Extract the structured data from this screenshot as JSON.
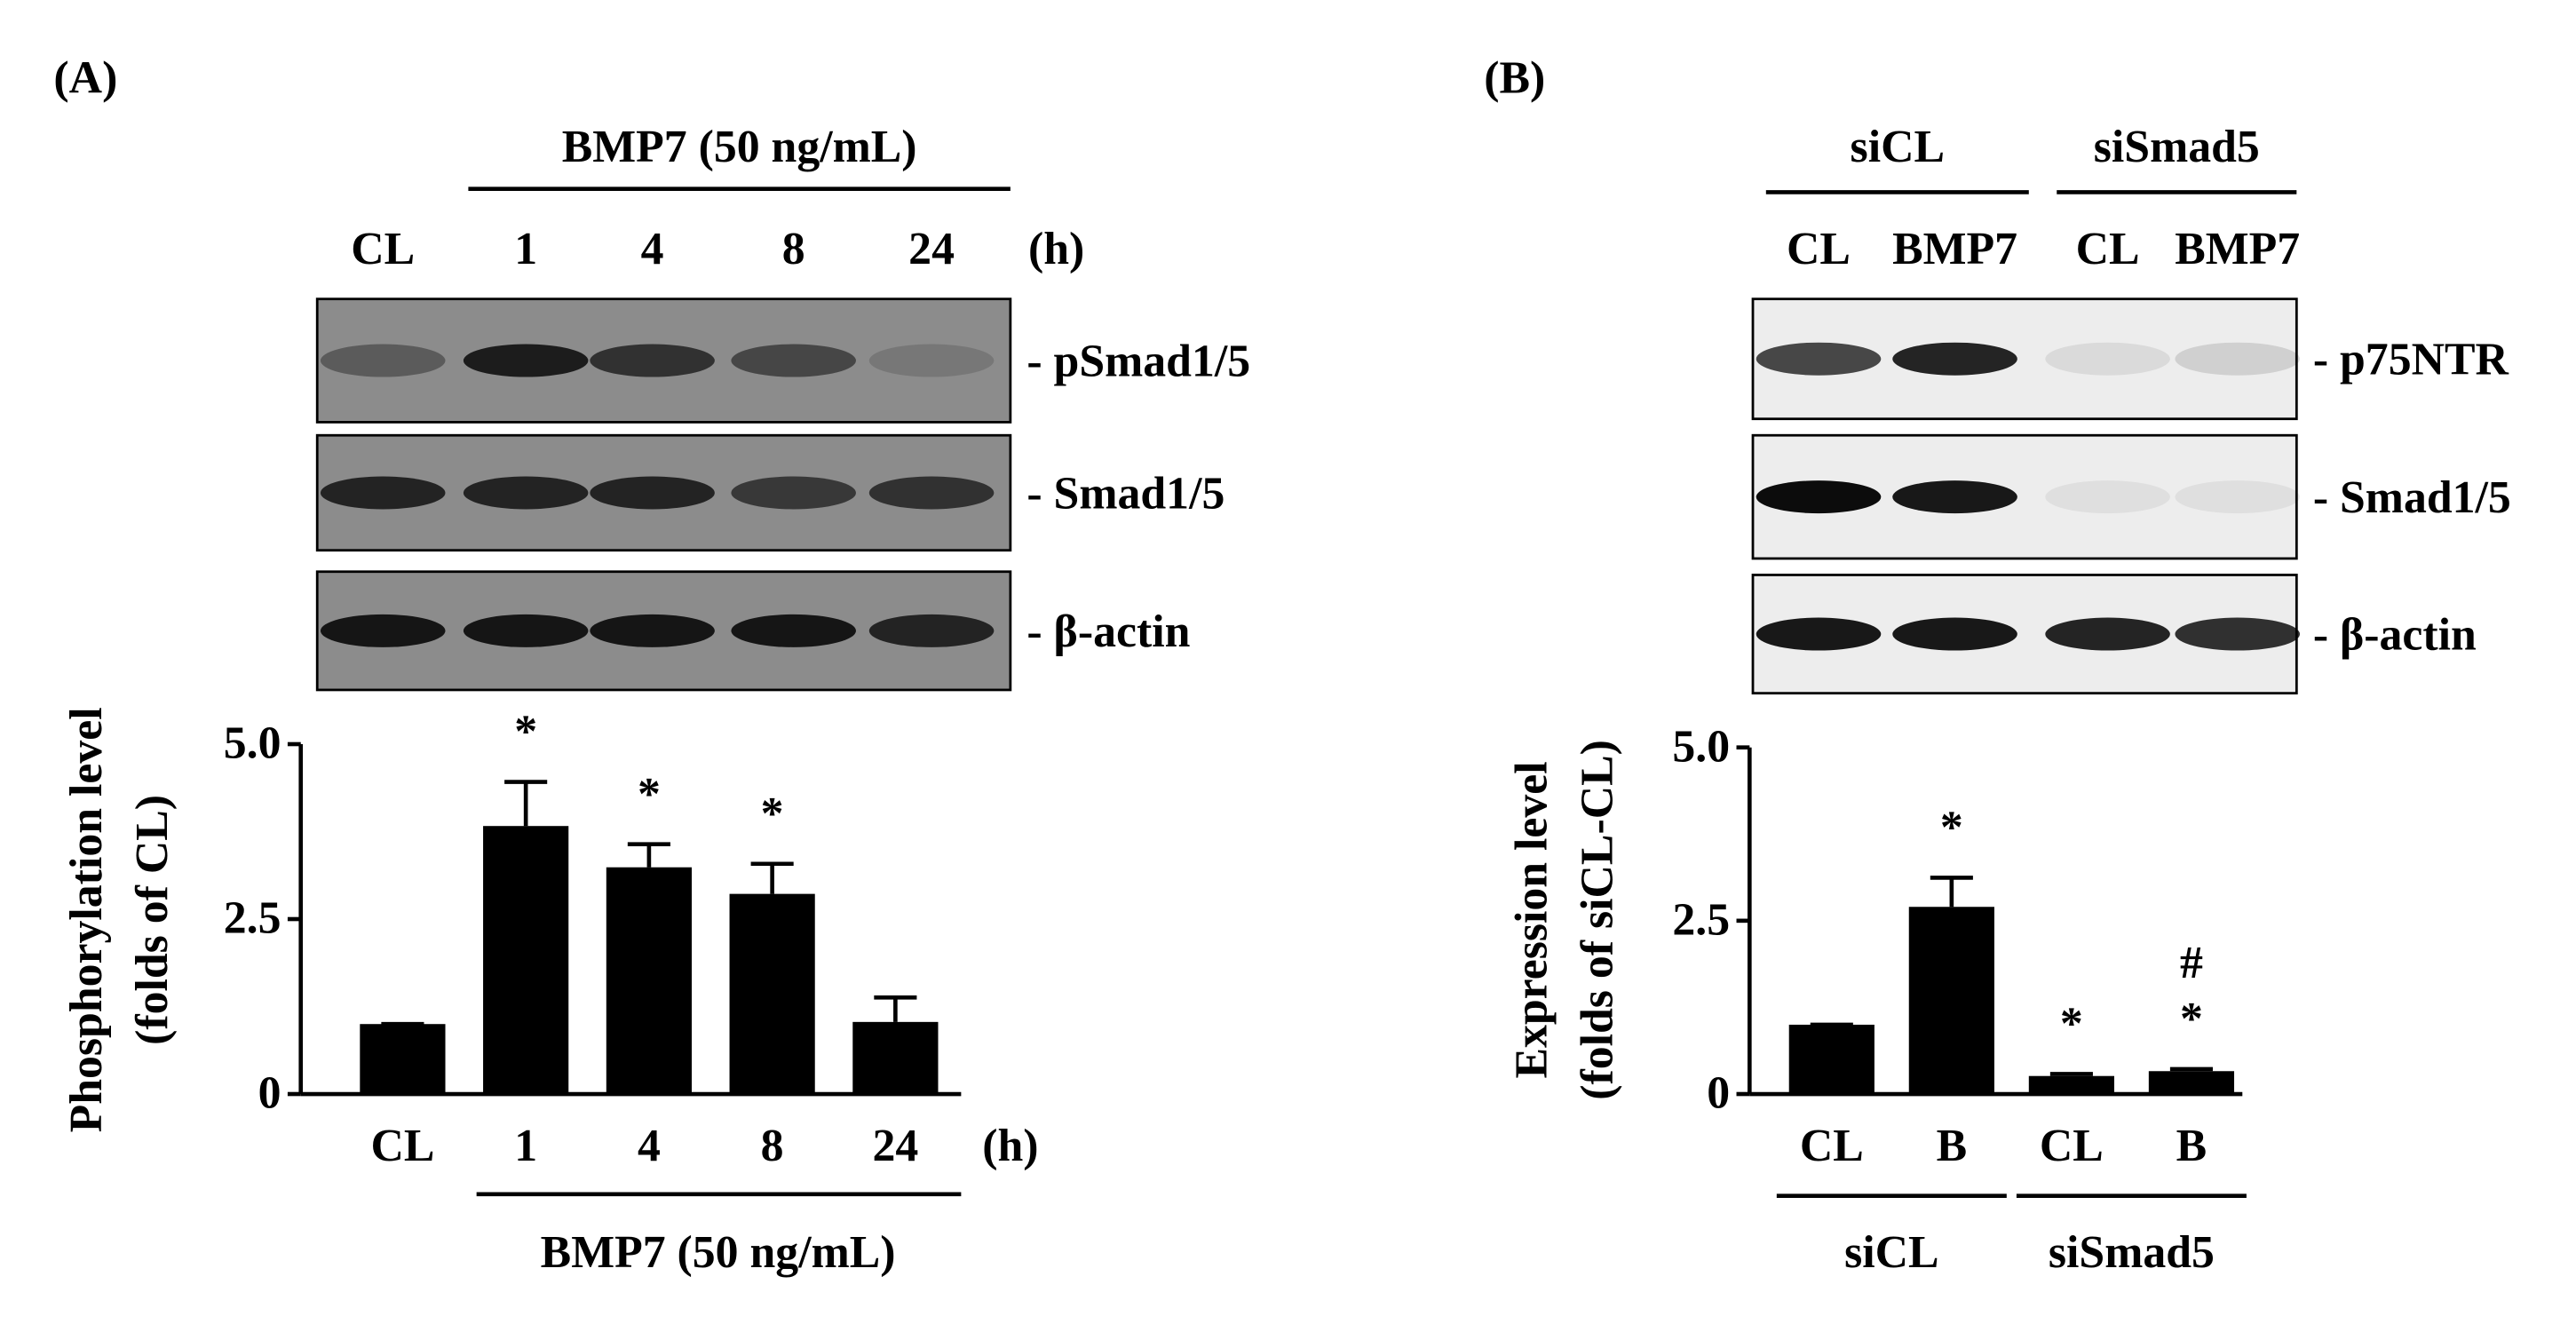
{
  "panels": [
    "(A)",
    "(B)"
  ],
  "blots": [
    {
      "group_label": "BMP7 (50 ng/mL)",
      "lanes": [
        "CL",
        "1",
        "4",
        "8",
        "24"
      ],
      "unit": "(h)",
      "rows": [
        "- pSmad1/5",
        "- Smad1/5",
        "- β-actin"
      ]
    },
    {
      "groups": [
        "siCL",
        "siSmad5"
      ],
      "lanes": [
        "CL",
        "BMP7",
        "CL",
        "BMP7"
      ],
      "rows": [
        "- p75NTR",
        "- Smad1/5",
        "- β-actin"
      ]
    }
  ],
  "chart_data": [
    {
      "type": "bar",
      "y_label": [
        "Phosphorylation level",
        "(folds of CL)"
      ],
      "categories": [
        "CL",
        "1",
        "4",
        "8",
        "24"
      ],
      "x_unit": "(h)",
      "x_group_label": "BMP7 (50 ng/mL)",
      "values": [
        1.0,
        3.83,
        3.24,
        2.86,
        1.03
      ],
      "errors": [
        0,
        0.63,
        0.33,
        0.43,
        0.35
      ],
      "annotations": [
        null,
        "*",
        "*",
        "*",
        null
      ],
      "color": "#000000",
      "ylim": [
        0,
        5
      ],
      "yticks": [
        0,
        2.5,
        {
          "value": 5,
          "label": "5.0"
        }
      ]
    },
    {
      "type": "bar",
      "y_label": [
        "Expression level",
        "(folds of siCL-CL)"
      ],
      "categories": [
        "CL",
        "B",
        "CL",
        "B"
      ],
      "groups": [
        "siCL",
        "siSmad5"
      ],
      "values": [
        1.0,
        2.7,
        0.26,
        0.33
      ],
      "errors": [
        0,
        0.42,
        0.03,
        0.03
      ],
      "annotations": [
        null,
        "*",
        "*",
        "*"
      ],
      "second_annotations": [
        null,
        null,
        null,
        "#"
      ],
      "color": "#000000",
      "ylim": [
        0,
        5
      ],
      "yticks": [
        0,
        2.5,
        {
          "value": 5,
          "label": "5.0"
        }
      ]
    }
  ]
}
